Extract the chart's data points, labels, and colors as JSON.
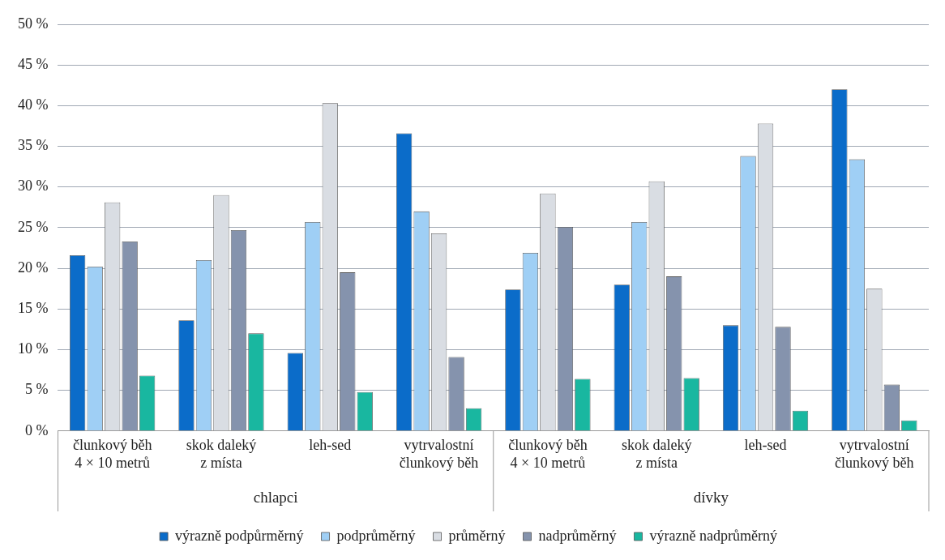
{
  "chart_data": {
    "type": "bar",
    "categories": [
      "člunkový běh 4 × 10 metrů",
      "skok daleký z místa",
      "leh-sed",
      "vytrvalostní člunkový běh",
      "člunkový běh 4 × 10 metrů",
      "skok daleký z místa",
      "leh-sed",
      "vytrvalostní člunkový běh"
    ],
    "series": [
      {
        "name": "výrazně podpůrměrný",
        "color": "#0b6cc9",
        "values": [
          21.6,
          13.6,
          9.6,
          36.6,
          17.4,
          18.0,
          13.0,
          42.0
        ]
      },
      {
        "name": "podprůměrný",
        "color": "#9fcff5",
        "values": [
          20.2,
          21.0,
          25.7,
          27.0,
          21.9,
          25.7,
          33.8,
          33.4
        ]
      },
      {
        "name": "průměrný",
        "color": "#d9dde3",
        "values": [
          28.1,
          29.0,
          40.3,
          24.3,
          29.2,
          30.7,
          37.8,
          17.5
        ]
      },
      {
        "name": "nadprůměrný",
        "color": "#8593ad",
        "values": [
          23.3,
          24.7,
          19.5,
          9.1,
          25.1,
          19.0,
          12.8,
          5.7
        ]
      },
      {
        "name": "výrazně nadprůměrný",
        "color": "#19b7a0",
        "values": [
          6.8,
          12.0,
          4.8,
          2.8,
          6.4,
          6.5,
          2.5,
          1.3
        ]
      }
    ],
    "annotations": [
      "chlapci",
      "dívky"
    ],
    "ylim": [
      0,
      50
    ],
    "yticks": [
      {
        "value": 0,
        "label": "0 %"
      },
      {
        "value": 5,
        "label": "5 %"
      },
      {
        "value": 10,
        "label": "10 %"
      },
      {
        "value": 15,
        "label": "15 %"
      },
      {
        "value": 20,
        "label": "20 %"
      },
      {
        "value": 25,
        "label": "25 %"
      },
      {
        "value": 30,
        "label": "30 %"
      },
      {
        "value": 35,
        "label": "35 %"
      },
      {
        "value": 40,
        "label": "40 %"
      },
      {
        "value": 45,
        "label": "45 %"
      },
      {
        "value": 50,
        "label": "50 %"
      }
    ],
    "grid": "y",
    "legend": "bottom"
  }
}
